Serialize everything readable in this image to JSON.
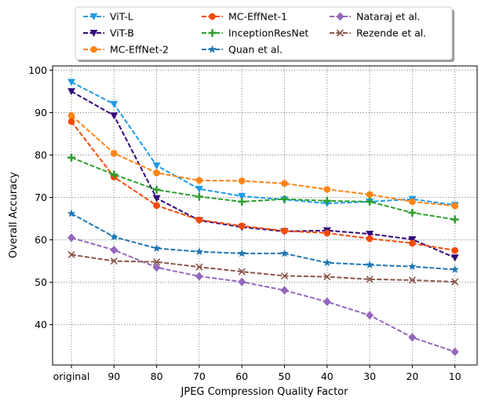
{
  "chart_data": {
    "type": "line",
    "title": "",
    "xlabel": "JPEG Compression Quality Factor",
    "ylabel": "Overall Accuracy",
    "categories": [
      "original",
      "90",
      "80",
      "70",
      "60",
      "50",
      "40",
      "30",
      "20",
      "10"
    ],
    "yticks": [
      "40",
      "50",
      "60",
      "70",
      "80",
      "90",
      "100"
    ],
    "ylim": [
      30.5,
      101
    ],
    "grid": true,
    "legend_position": "top-center, outside plot",
    "series": [
      {
        "name": "ViT-L",
        "color": "#1f9be6",
        "marker": "triangle-down",
        "values": [
          97.2,
          92.0,
          77.5,
          72.0,
          70.3,
          69.5,
          68.6,
          69.0,
          69.6,
          68.2
        ]
      },
      {
        "name": "ViT-B",
        "color": "#33087a",
        "marker": "triangle-down",
        "values": [
          95.0,
          89.3,
          69.8,
          64.6,
          63.0,
          62.0,
          62.2,
          61.4,
          60.1,
          55.8
        ]
      },
      {
        "name": "MC-EffNet-2",
        "color": "#ff8415",
        "marker": "circle",
        "values": [
          89.3,
          80.4,
          75.8,
          74.0,
          73.9,
          73.3,
          71.9,
          70.7,
          69.0,
          68.0
        ]
      },
      {
        "name": "MC-EffNet-1",
        "color": "#f54a05",
        "marker": "circle",
        "values": [
          87.9,
          74.8,
          68.1,
          64.7,
          63.3,
          62.1,
          61.6,
          60.3,
          59.2,
          57.5
        ]
      },
      {
        "name": "InceptionResNet",
        "color": "#2ca02c",
        "marker": "plus",
        "values": [
          79.4,
          75.4,
          71.8,
          70.2,
          69.0,
          69.6,
          69.2,
          69.0,
          66.4,
          64.8
        ]
      },
      {
        "name": "Quan et al.",
        "color": "#1f77b4",
        "marker": "star",
        "values": [
          66.2,
          60.7,
          58.0,
          57.2,
          56.8,
          56.8,
          54.6,
          54.1,
          53.7,
          53.0
        ]
      },
      {
        "name": "Nataraj et al.",
        "color": "#9467bd",
        "marker": "diamond",
        "values": [
          60.5,
          57.6,
          53.5,
          51.4,
          50.1,
          48.1,
          45.4,
          42.2,
          37.0,
          33.6
        ]
      },
      {
        "name": "Rezende et al.",
        "color": "#8c564b",
        "marker": "x",
        "values": [
          56.5,
          55.0,
          54.8,
          53.6,
          52.5,
          51.5,
          51.3,
          50.7,
          50.5,
          50.1
        ]
      }
    ]
  }
}
